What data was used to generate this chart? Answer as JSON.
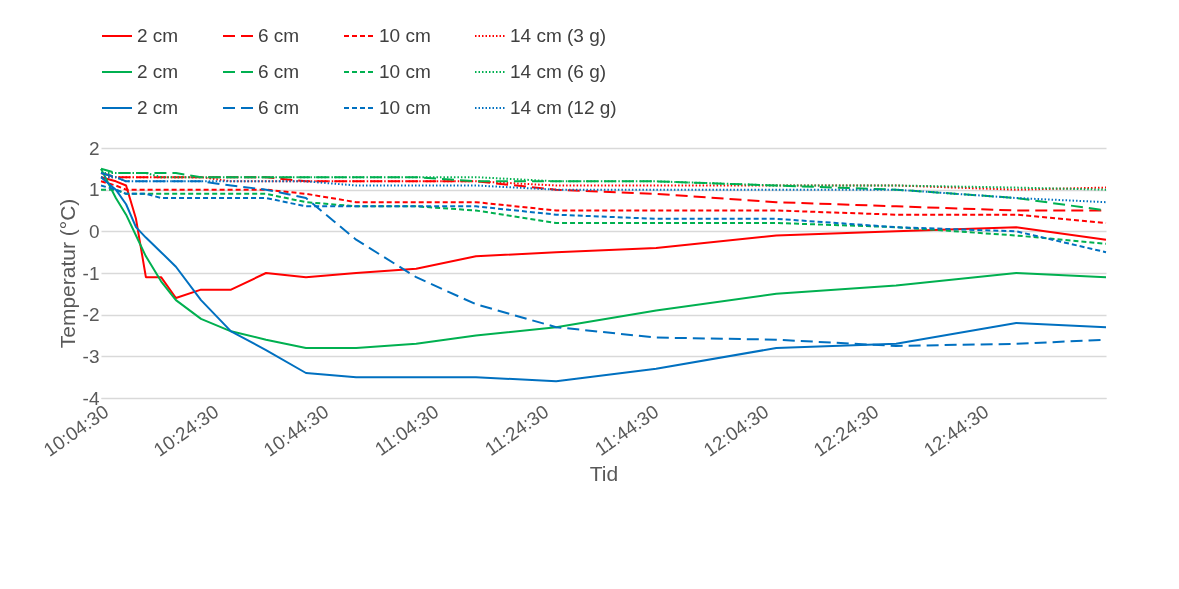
{
  "chart_data": {
    "type": "line",
    "xlabel": "Tid",
    "ylabel": "Temperatur (°C)",
    "grid": "y",
    "legend": "top",
    "x": [
      10.075,
      10.12,
      10.151,
      10.181,
      10.211,
      10.257,
      10.302,
      10.378,
      10.469,
      10.575,
      10.696,
      10.848,
      11.03,
      11.211,
      11.454,
      11.757,
      12.121,
      12.484,
      12.848,
      13.12
    ],
    "xlim": [
      10.075,
      13.12
    ],
    "xticks": [
      {
        "value": 10.075,
        "label": "10:04:30"
      },
      {
        "value": 10.4083,
        "label": "10:24:30"
      },
      {
        "value": 10.7417,
        "label": "10:44:30"
      },
      {
        "value": 11.075,
        "label": "11:04:30"
      },
      {
        "value": 11.4083,
        "label": "11:24:30"
      },
      {
        "value": 11.7417,
        "label": "11:44:30"
      },
      {
        "value": 12.075,
        "label": "12:04:30"
      },
      {
        "value": 12.4083,
        "label": "12:24:30"
      },
      {
        "value": 12.7417,
        "label": "12:44:30"
      }
    ],
    "ylim": [
      -4,
      2
    ],
    "yticks": [
      -4,
      -3,
      -2,
      -1,
      0,
      1,
      2
    ],
    "series": [
      {
        "name": "2 cm",
        "color": "#ff0000",
        "line_style": "solid",
        "values": [
          1.3,
          1.2,
          1.1,
          0.3,
          -1.1,
          -1.1,
          -1.6,
          -1.4,
          -1.4,
          -1.0,
          -1.1,
          -1.0,
          -0.9,
          -0.6,
          -0.5,
          -0.4,
          -0.1,
          0.0,
          0.1,
          -0.2
        ]
      },
      {
        "name": "6 cm",
        "color": "#ff0000",
        "line_style": "dashed",
        "values": [
          1.4,
          1.3,
          1.3,
          1.3,
          1.3,
          1.3,
          1.3,
          1.3,
          1.3,
          1.3,
          1.2,
          1.2,
          1.2,
          1.2,
          1.0,
          0.9,
          0.7,
          0.6,
          0.5,
          0.5
        ]
      },
      {
        "name": "10 cm",
        "color": "#ff0000",
        "line_style": "short dashed",
        "values": [
          1.2,
          1.1,
          1.0,
          1.0,
          1.0,
          1.0,
          1.0,
          1.0,
          1.0,
          1.0,
          0.9,
          0.7,
          0.7,
          0.7,
          0.5,
          0.5,
          0.5,
          0.4,
          0.4,
          0.2
        ]
      },
      {
        "name": "14 cm (3 g)",
        "color": "#ff0000",
        "line_style": "dotted",
        "values": [
          1.3,
          1.3,
          1.3,
          1.3,
          1.3,
          1.3,
          1.3,
          1.3,
          1.2,
          1.2,
          1.2,
          1.2,
          1.2,
          1.2,
          1.1,
          1.1,
          1.1,
          1.1,
          1.0,
          1.05
        ]
      },
      {
        "name": "2 cm",
        "color": "#00b050",
        "line_style": "solid",
        "values": [
          1.5,
          0.8,
          0.4,
          -0.1,
          -0.6,
          -1.2,
          -1.65,
          -2.1,
          -2.4,
          -2.6,
          -2.8,
          -2.8,
          -2.7,
          -2.5,
          -2.3,
          -1.9,
          -1.5,
          -1.3,
          -1.0,
          -1.1
        ]
      },
      {
        "name": "6 cm",
        "color": "#00b050",
        "line_style": "dashed",
        "values": [
          1.5,
          1.4,
          1.4,
          1.4,
          1.4,
          1.4,
          1.4,
          1.3,
          1.3,
          1.3,
          1.3,
          1.3,
          1.3,
          1.2,
          1.2,
          1.2,
          1.1,
          1.0,
          0.8,
          0.5
        ]
      },
      {
        "name": "10 cm",
        "color": "#00b050",
        "line_style": "short dashed",
        "values": [
          1.0,
          1.0,
          0.9,
          0.9,
          0.9,
          0.9,
          0.9,
          0.9,
          0.9,
          0.9,
          0.7,
          0.6,
          0.6,
          0.5,
          0.2,
          0.2,
          0.2,
          0.1,
          -0.1,
          -0.3
        ]
      },
      {
        "name": "14 cm (6 g)",
        "color": "#00b050",
        "line_style": "dotted",
        "values": [
          1.4,
          1.4,
          1.4,
          1.4,
          1.4,
          1.3,
          1.3,
          1.3,
          1.3,
          1.3,
          1.3,
          1.3,
          1.3,
          1.3,
          1.2,
          1.2,
          1.1,
          1.1,
          1.05,
          1.0
        ]
      },
      {
        "name": "2 cm",
        "color": "#0070c0",
        "line_style": "solid",
        "values": [
          1.3,
          1.0,
          0.65,
          0.1,
          -0.15,
          -0.5,
          -0.85,
          -1.65,
          -2.4,
          -2.85,
          -3.4,
          -3.5,
          -3.5,
          -3.5,
          -3.6,
          -3.3,
          -2.8,
          -2.7,
          -2.2,
          -2.3
        ]
      },
      {
        "name": "6 cm",
        "color": "#0070c0",
        "line_style": "dashed",
        "values": [
          1.4,
          1.3,
          1.2,
          1.2,
          1.2,
          1.2,
          1.2,
          1.2,
          1.1,
          1.0,
          0.8,
          -0.2,
          -1.1,
          -1.75,
          -2.3,
          -2.55,
          -2.6,
          -2.75,
          -2.7,
          -2.6
        ]
      },
      {
        "name": "10 cm",
        "color": "#0070c0",
        "line_style": "short dashed",
        "values": [
          1.1,
          1.0,
          0.9,
          0.9,
          0.9,
          0.8,
          0.8,
          0.8,
          0.8,
          0.8,
          0.6,
          0.6,
          0.6,
          0.6,
          0.4,
          0.3,
          0.3,
          0.1,
          0.0,
          -0.5
        ]
      },
      {
        "name": "14 cm (12 g)",
        "color": "#0070c0",
        "line_style": "dotted",
        "values": [
          1.3,
          1.3,
          1.2,
          1.2,
          1.2,
          1.2,
          1.2,
          1.2,
          1.2,
          1.2,
          1.2,
          1.1,
          1.1,
          1.1,
          1.0,
          1.0,
          1.0,
          1.0,
          0.8,
          0.7
        ]
      }
    ]
  }
}
